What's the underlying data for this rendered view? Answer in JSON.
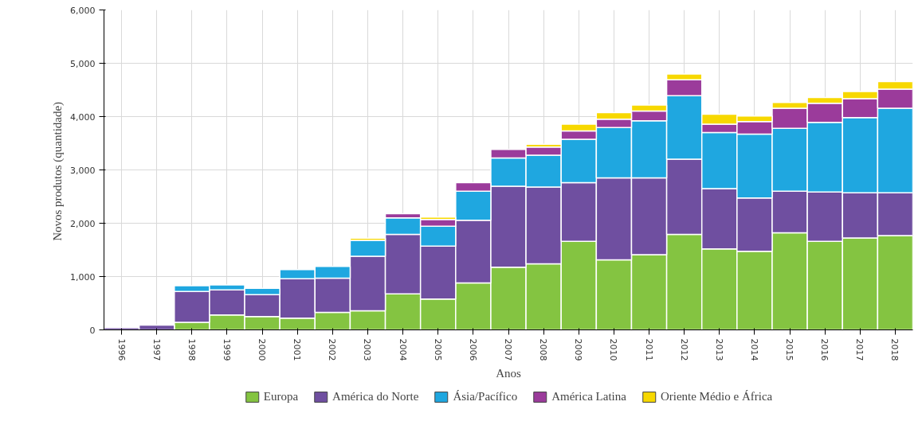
{
  "chart_data": {
    "type": "bar",
    "stacked": true,
    "xlabel": "Anos",
    "ylabel": "Novos  produtos (quantidade)",
    "categories": [
      "1996",
      "1997",
      "1998",
      "1999",
      "2000",
      "2001",
      "2002",
      "2003",
      "2004",
      "2005",
      "2006",
      "2007",
      "2008",
      "2009",
      "2010",
      "2011",
      "2012",
      "2013",
      "2014",
      "2015",
      "2016",
      "2017",
      "2018"
    ],
    "series": [
      {
        "name": "Europa",
        "color": "#84c441",
        "values": [
          null,
          null,
          140,
          280,
          250,
          220,
          330,
          360,
          675,
          580,
          880,
          1175,
          1240,
          1660,
          1315,
          1410,
          1790,
          1520,
          1475,
          1820,
          1660,
          1725,
          1770
        ]
      },
      {
        "name": "América do Norte",
        "color": "#6f4fa0",
        "values": [
          40,
          90,
          580,
          470,
          410,
          740,
          640,
          1020,
          1115,
          990,
          1175,
          1520,
          1440,
          1100,
          1535,
          1440,
          1410,
          1130,
          1000,
          780,
          925,
          845,
          800
        ]
      },
      {
        "name": "Ásia/Pacífico",
        "color": "#1fa7e0",
        "values": [
          null,
          null,
          110,
          95,
          120,
          170,
          220,
          300,
          310,
          375,
          545,
          530,
          595,
          815,
          945,
          1070,
          1190,
          1050,
          1195,
          1180,
          1305,
          1410,
          1585
        ]
      },
      {
        "name": "América Latina",
        "color": "#9b3b9b",
        "values": [
          null,
          null,
          null,
          null,
          null,
          null,
          null,
          null,
          80,
          125,
          160,
          160,
          155,
          155,
          155,
          185,
          300,
          160,
          235,
          375,
          360,
          355,
          360
        ]
      },
      {
        "name": "Oriente Médio e África",
        "color": "#f7d800",
        "values": [
          null,
          null,
          null,
          null,
          null,
          null,
          null,
          40,
          null,
          45,
          null,
          null,
          50,
          130,
          125,
          110,
          110,
          185,
          105,
          110,
          110,
          135,
          140
        ]
      }
    ],
    "ylim": [
      0,
      6000
    ],
    "yticks": [
      0,
      {
        "value": 1000,
        "label": "1,000"
      },
      {
        "value": 2000,
        "label": "2,000"
      },
      {
        "value": 3000,
        "label": "3,000"
      },
      {
        "value": 4000,
        "label": "4,000"
      },
      {
        "value": 5000,
        "label": "5,000"
      },
      {
        "value": 6000,
        "label": "6,000"
      }
    ],
    "grid": true,
    "legend": "bottom"
  }
}
